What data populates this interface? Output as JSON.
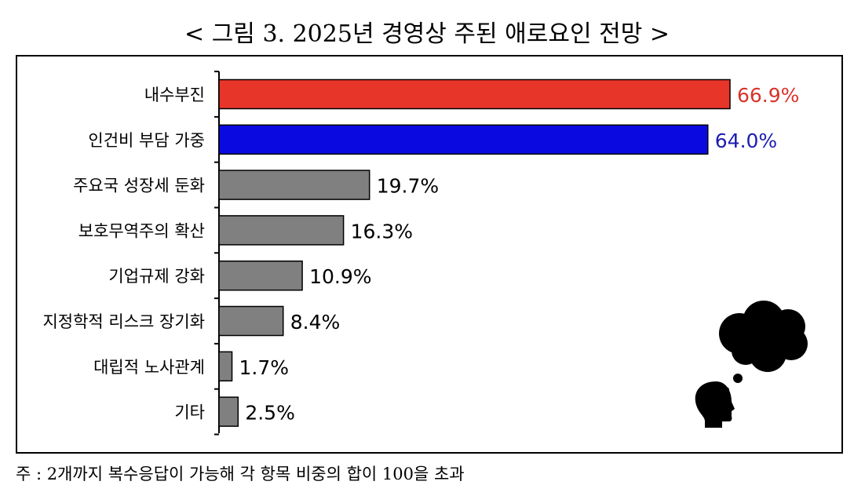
{
  "title": "< 그림 3. 2025년 경영상 주된 애로요인 전망 >",
  "note": "주 : 2개까지 복수응답이 가능해 각 항목 비중의 합이 100을 초과",
  "chart_data": {
    "type": "bar",
    "orientation": "horizontal",
    "title": "< 그림 3. 2025년 경영상 주된 애로요인 전망 >",
    "categories": [
      "내수부진",
      "인건비 부담 가중",
      "주요국 성장세 둔화",
      "보호무역주의 확산",
      "기업규제 강화",
      "지정학적 리스크 장기화",
      "대립적 노사관계",
      "기타"
    ],
    "values": [
      66.9,
      64.0,
      19.7,
      16.3,
      10.9,
      8.4,
      1.7,
      2.5
    ],
    "value_labels": [
      "66.9%",
      "64.0%",
      "19.7%",
      "16.3%",
      "10.9%",
      "8.4%",
      "1.7%",
      "2.5%"
    ],
    "unit": "%",
    "bar_colors": [
      "#e8352a",
      "#0a0ae0",
      "#808080",
      "#808080",
      "#808080",
      "#808080",
      "#808080",
      "#808080"
    ],
    "label_colors": [
      "#d7342a",
      "#1c1cb4",
      "#000000",
      "#000000",
      "#000000",
      "#000000",
      "#000000",
      "#000000"
    ],
    "xlim": [
      0,
      66.9
    ],
    "grid": false,
    "legend": false
  },
  "decoration": {
    "icon": "thinking-head-icon"
  }
}
